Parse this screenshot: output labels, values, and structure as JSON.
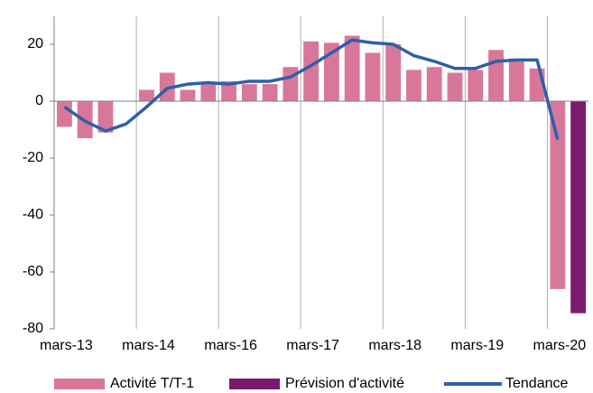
{
  "chart_data": {
    "type": "bar-line",
    "categories": [
      "mars-13",
      null,
      null,
      null,
      "mars-14",
      null,
      null,
      null,
      "mars-16",
      null,
      null,
      null,
      "mars-17",
      null,
      null,
      null,
      "mars-18",
      null,
      null,
      null,
      "mars-19",
      null,
      null,
      null,
      "mars-20",
      null
    ],
    "series": [
      {
        "name": "Activité T/T-1",
        "color": "#d9779a",
        "kind": "bar",
        "values": [
          -9,
          -13,
          -11,
          0,
          4,
          10,
          4,
          6,
          7,
          6,
          6,
          12,
          21,
          20.5,
          23,
          17,
          20,
          11,
          12,
          10,
          11,
          18,
          15,
          11.5,
          -66,
          null
        ]
      },
      {
        "name": "Prévision d'activité",
        "color": "#7b1a6f",
        "kind": "bar",
        "values": [
          null,
          null,
          null,
          null,
          null,
          null,
          null,
          null,
          null,
          null,
          null,
          null,
          null,
          null,
          null,
          null,
          null,
          null,
          null,
          null,
          null,
          null,
          null,
          null,
          null,
          -74.5
        ]
      },
      {
        "name": "Tendance",
        "color": "#2e5fa8",
        "kind": "line",
        "values": [
          -2,
          -7,
          -10.5,
          -8,
          -2,
          4.5,
          6,
          6.5,
          6,
          7,
          7,
          8.5,
          12.5,
          17,
          21.5,
          20.5,
          20,
          16,
          14,
          11.5,
          11.5,
          14,
          14.5,
          14.5,
          -13.5,
          null
        ]
      }
    ],
    "ylim": [
      -80,
      30
    ],
    "yticks": [
      -80,
      -60,
      -40,
      -20,
      0,
      20
    ],
    "legend": "bottom"
  }
}
